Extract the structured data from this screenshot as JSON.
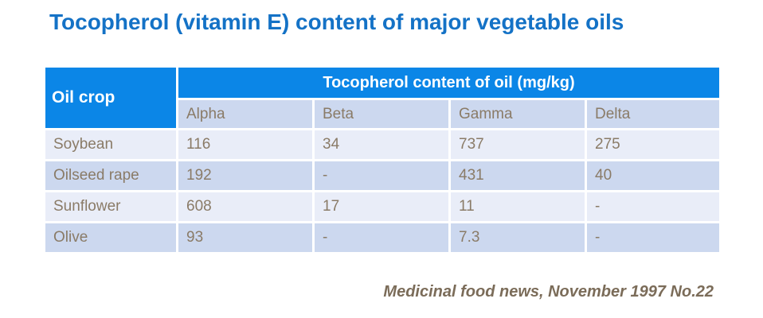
{
  "title": "Tocopherol (vitamin E) content of major vegetable oils",
  "table": {
    "corner_header": "Oil crop",
    "group_header": "Tocopherol content of oil (mg/kg)",
    "sub_headers": [
      "Alpha",
      "Beta",
      "Gamma",
      "Delta"
    ],
    "rows": [
      {
        "crop": "Soybean",
        "values": [
          "116",
          "34",
          "737",
          "275"
        ]
      },
      {
        "crop": "Oilseed rape",
        "values": [
          "192",
          "-",
          "431",
          "40"
        ]
      },
      {
        "crop": "Sunflower",
        "values": [
          "608",
          "17",
          "11",
          "-"
        ]
      },
      {
        "crop": "Olive",
        "values": [
          "93",
          "-",
          "7.3",
          "-"
        ]
      }
    ]
  },
  "footer": "Medicinal food news, November 1997 No.22",
  "colors": {
    "header_blue": "#0b86e7",
    "title_blue": "#1472c6",
    "row_light": "#e9edf8",
    "row_dark": "#ccd8ef",
    "text_taupe": "#8a7b67",
    "footer_taupe": "#7b6c59"
  },
  "chart_data": {
    "type": "table",
    "title": "Tocopherol (vitamin E) content of major vegetable oils",
    "column_group_label": "Tocopherol content of oil (mg/kg)",
    "columns": [
      "Oil crop",
      "Alpha",
      "Beta",
      "Gamma",
      "Delta"
    ],
    "rows": [
      [
        "Soybean",
        116,
        34,
        737,
        275
      ],
      [
        "Oilseed rape",
        192,
        null,
        431,
        40
      ],
      [
        "Sunflower",
        608,
        17,
        11,
        null
      ],
      [
        "Olive",
        93,
        null,
        7.3,
        null
      ]
    ],
    "units": "mg/kg",
    "missing_value_display": "-",
    "source": "Medicinal food news, November 1997 No.22"
  }
}
